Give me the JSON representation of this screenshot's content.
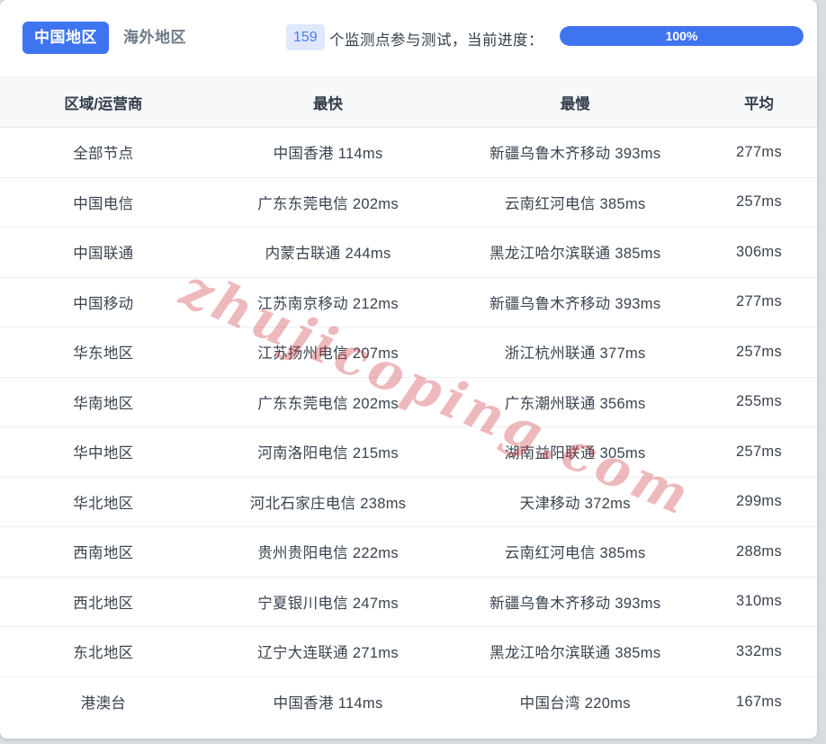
{
  "header": {
    "tabs": [
      {
        "label": "中国地区",
        "active": true
      },
      {
        "label": "海外地区",
        "active": false
      }
    ],
    "count_badge": "159",
    "count_suffix": "个监测点参与测试，当前进度：",
    "progress": {
      "value_label": "100%",
      "percent": 100
    }
  },
  "table": {
    "columns": [
      "区域/运营商",
      "最快",
      "最慢",
      "平均"
    ],
    "rows": [
      {
        "region": "全部节点",
        "fastest": "中国香港 114ms",
        "slowest": "新疆乌鲁木齐移动 393ms",
        "average": "277ms"
      },
      {
        "region": "中国电信",
        "fastest": "广东东莞电信 202ms",
        "slowest": "云南红河电信 385ms",
        "average": "257ms"
      },
      {
        "region": "中国联通",
        "fastest": "内蒙古联通 244ms",
        "slowest": "黑龙江哈尔滨联通 385ms",
        "average": "306ms"
      },
      {
        "region": "中国移动",
        "fastest": "江苏南京移动 212ms",
        "slowest": "新疆乌鲁木齐移动 393ms",
        "average": "277ms"
      },
      {
        "region": "华东地区",
        "fastest": "江苏扬州电信 207ms",
        "slowest": "浙江杭州联通 377ms",
        "average": "257ms"
      },
      {
        "region": "华南地区",
        "fastest": "广东东莞电信 202ms",
        "slowest": "广东潮州联通 356ms",
        "average": "255ms"
      },
      {
        "region": "华中地区",
        "fastest": "河南洛阳电信 215ms",
        "slowest": "湖南益阳联通 305ms",
        "average": "257ms"
      },
      {
        "region": "华北地区",
        "fastest": "河北石家庄电信 238ms",
        "slowest": "天津移动 372ms",
        "average": "299ms"
      },
      {
        "region": "西南地区",
        "fastest": "贵州贵阳电信 222ms",
        "slowest": "云南红河电信 385ms",
        "average": "288ms"
      },
      {
        "region": "西北地区",
        "fastest": "宁夏银川电信 247ms",
        "slowest": "新疆乌鲁木齐移动 393ms",
        "average": "310ms"
      },
      {
        "region": "东北地区",
        "fastest": "辽宁大连联通 271ms",
        "slowest": "黑龙江哈尔滨联通 385ms",
        "average": "332ms"
      },
      {
        "region": "港澳台",
        "fastest": "中国香港 114ms",
        "slowest": "中国台湾 220ms",
        "average": "167ms"
      }
    ]
  },
  "watermark": {
    "text": "zhujicoping.com"
  },
  "colors": {
    "accent": "#3e74f0",
    "badge_bg": "#dfe8fd",
    "badge_text": "#4a7df2",
    "page_bg": "#d9dde2",
    "table_head_bg": "#f7f8fa",
    "text_dark": "#39434f",
    "watermark": "rgba(204,51,59,0.34)"
  }
}
